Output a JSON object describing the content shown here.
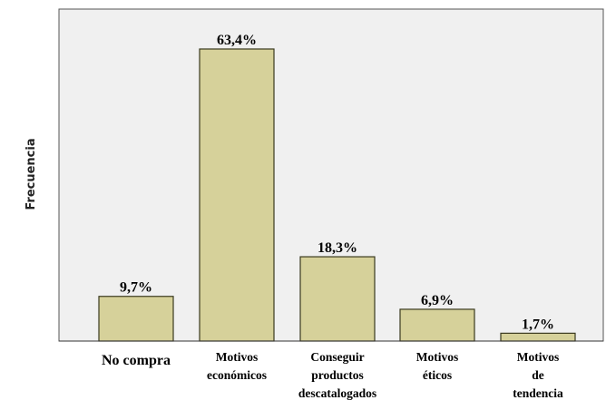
{
  "chart_data": {
    "type": "bar",
    "ylabel": "Frecuencia",
    "xlabel": "",
    "title": "",
    "categories": [
      [
        "No compra"
      ],
      [
        "Motivos",
        "económicos"
      ],
      [
        "Conseguir",
        "productos",
        "descatalogados"
      ],
      [
        "Motivos",
        "éticos"
      ],
      [
        "Motivos",
        "de",
        "tendencia"
      ]
    ],
    "values": [
      9.7,
      63.4,
      18.3,
      6.9,
      1.7
    ],
    "data_labels": [
      "9,7%",
      "63,4%",
      "18,3%",
      "6,9%",
      "1,7%"
    ],
    "ylim": [
      0,
      63.4
    ],
    "grid": false,
    "y_ticks_shown": false,
    "bar_color": "#d6d19a",
    "bar_edge": "#3a3a1e",
    "plot_background": "#f0f0f0"
  }
}
